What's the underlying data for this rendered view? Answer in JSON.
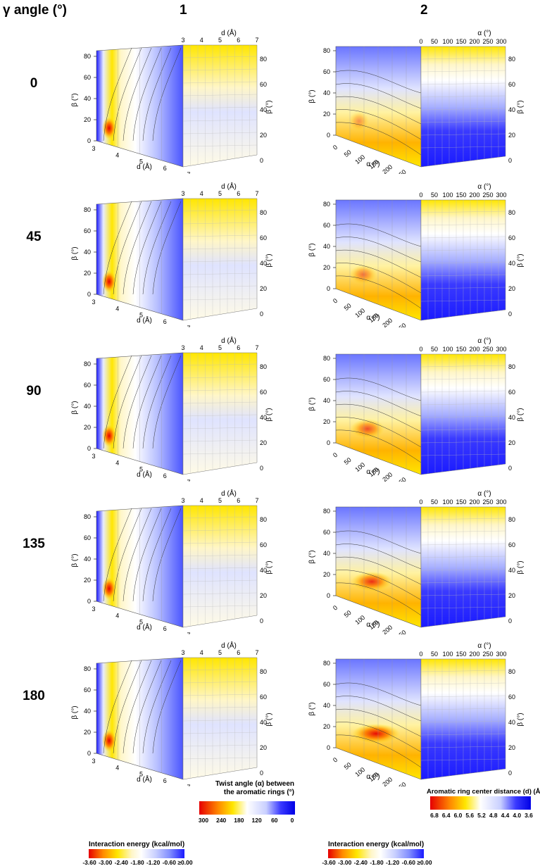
{
  "header": {
    "gamma_label": "γ angle (°)",
    "col1": "1",
    "col2": "2"
  },
  "rows": [
    {
      "gamma": "0"
    },
    {
      "gamma": "45"
    },
    {
      "gamma": "90"
    },
    {
      "gamma": "135"
    },
    {
      "gamma": "180"
    }
  ],
  "axes": {
    "beta": "β (°)",
    "d": "d (Å)",
    "alpha": "α (°)",
    "beta_ticks": [
      "0",
      "20",
      "40",
      "60",
      "80"
    ],
    "d_ticks": [
      "3",
      "4",
      "5",
      "6",
      "7"
    ],
    "alpha_ticks": [
      "0",
      "50",
      "100",
      "150",
      "200",
      "250",
      "300"
    ]
  },
  "colorbars": {
    "energy_title": "Interaction energy (kcal/mol)",
    "energy_ticks": [
      "-3.60",
      "-3.00",
      "-2.40",
      "-1.80",
      "-1.20",
      "-0.60",
      "≥0.00"
    ],
    "twist_title_1": "Twist angle (α) between",
    "twist_title_2": "the aromatic rings (°)",
    "twist_ticks": [
      "300",
      "240",
      "180",
      "120",
      "60",
      "0"
    ],
    "dist_title": "Aromatic ring center distance (d) (Å)",
    "dist_ticks": [
      "6.8",
      "6.4",
      "6.0",
      "5.6",
      "5.2",
      "4.8",
      "4.4",
      "4.0",
      "3.6"
    ],
    "energy_colors": [
      "#e60000",
      "#ff8a00",
      "#ffe600",
      "#fff6c8",
      "#ffffff",
      "#c8cfff",
      "#7f8cff",
      "#1a1aff"
    ],
    "twist_colors": [
      "#e60000",
      "#ff8a00",
      "#ffe600",
      "#fffbe6",
      "#ffffff",
      "#c8cfff",
      "#3a3aff",
      "#0000e6"
    ],
    "dist_colors": [
      "#e60000",
      "#ff8a00",
      "#ffe600",
      "#ffffff",
      "#c8cfff",
      "#3a3aff",
      "#0000e6"
    ]
  },
  "chart_data": [
    {
      "type": "heatmap",
      "panel": "column 1 (d vs β), color = interaction energy",
      "xlabel": "d (Å)",
      "ylabel": "β (°)",
      "xlim": [
        3,
        7
      ],
      "ylim": [
        0,
        90
      ],
      "colorbar": "Interaction energy (kcal/mol)",
      "rows": [
        "0",
        "45",
        "90",
        "135",
        "180"
      ]
    },
    {
      "type": "heatmap",
      "panel": "column 1 side projection (d vs β), color = twist angle α",
      "xlabel": "d (Å)",
      "ylabel": "β (°)",
      "xlim": [
        3,
        7
      ],
      "ylim": [
        0,
        90
      ],
      "colorbar": "Twist angle (α) between the aromatic rings (°)"
    },
    {
      "type": "heatmap",
      "panel": "column 2 (α vs β), color = interaction energy",
      "xlabel": "α (°)",
      "ylabel": "β (°)",
      "xlim": [
        0,
        300
      ],
      "ylim": [
        0,
        90
      ],
      "colorbar": "Interaction energy (kcal/mol)"
    },
    {
      "type": "heatmap",
      "panel": "column 2 side projection (α vs β), color = ring center distance d",
      "xlabel": "α (°)",
      "ylabel": "β (°)",
      "xlim": [
        0,
        300
      ],
      "ylim": [
        0,
        90
      ],
      "colorbar": "Aromatic ring center distance (d) (Å)"
    }
  ]
}
